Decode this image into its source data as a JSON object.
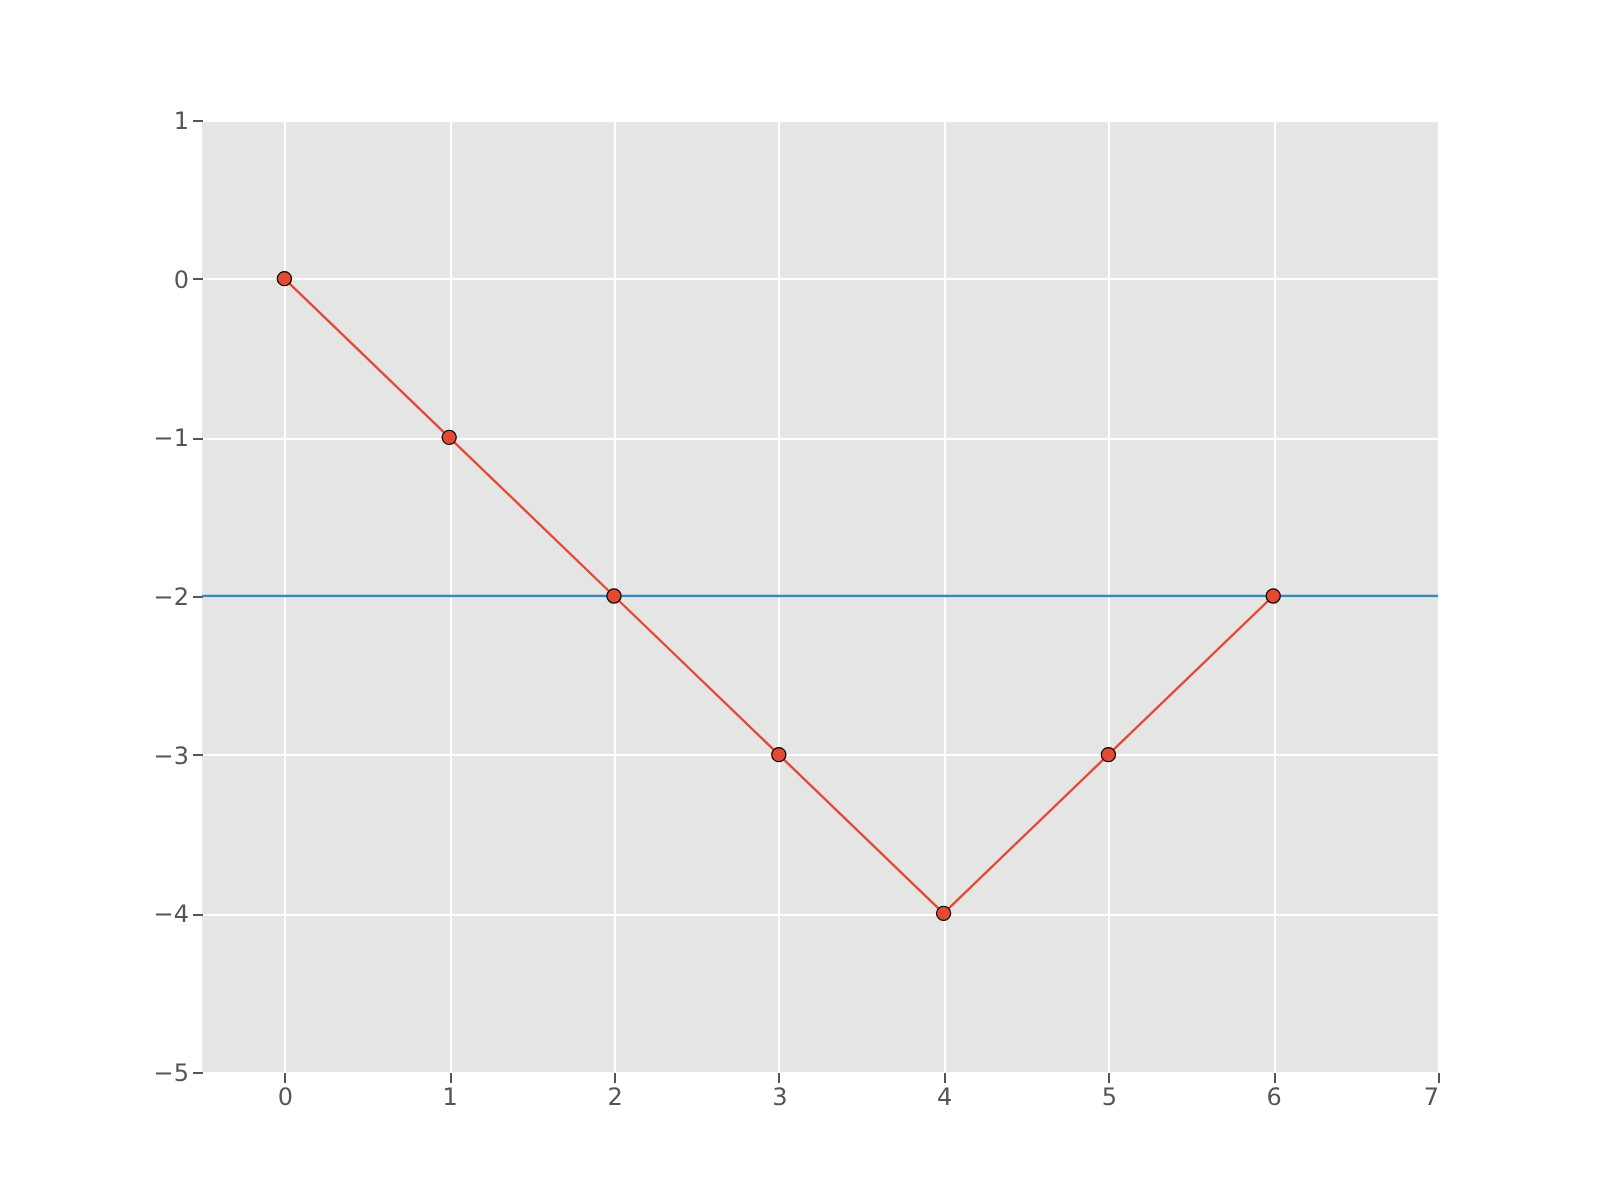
{
  "chart_data": {
    "type": "line",
    "x": [
      0,
      1,
      2,
      3,
      4,
      5,
      6
    ],
    "series": [
      {
        "color": "#e24a33",
        "values": [
          0,
          -1,
          -2,
          -3,
          -4,
          -3,
          -2
        ]
      }
    ],
    "xlim": [
      -0.5,
      7
    ],
    "xticks": [
      0,
      1,
      2,
      3,
      4,
      5,
      6,
      7
    ],
    "ylim": [
      -5,
      1
    ],
    "yticks": [
      {
        "value": -5,
        "label": "−5"
      },
      {
        "value": -4,
        "label": "−4"
      },
      {
        "value": -3,
        "label": "−3"
      },
      {
        "value": -2,
        "label": "−2"
      },
      {
        "value": -1,
        "label": "−1"
      },
      0,
      1
    ],
    "ref_lines": [
      {
        "axis": "y",
        "value": -2,
        "color": "#348abd"
      }
    ],
    "grid": true,
    "marker": "circle",
    "line_style": "solid"
  }
}
